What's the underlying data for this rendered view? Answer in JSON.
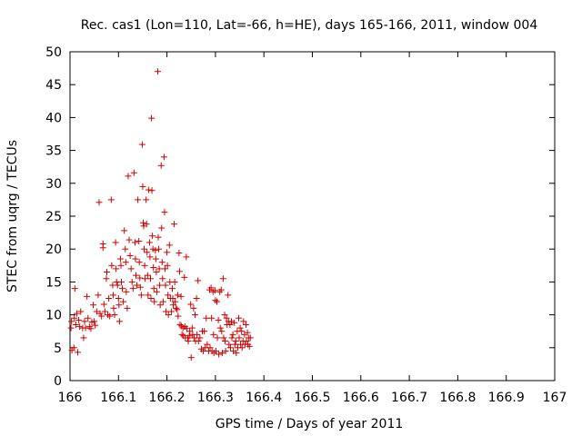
{
  "chart_data": {
    "type": "scatter",
    "title": "Rec. cas1 (Lon=110, Lat=-66, h=HE), days 165-166, 2011, window 004",
    "xlabel": "GPS time / Days of year 2011",
    "ylabel": "STEC from uqrg / TECUs",
    "xlim": [
      166,
      167
    ],
    "ylim": [
      0,
      50
    ],
    "x_ticks": [
      166,
      166.1,
      166.2,
      166.3,
      166.4,
      166.5,
      166.6,
      166.7,
      166.8,
      166.9,
      167
    ],
    "x_tick_labels": [
      "166",
      "166.1",
      "166.2",
      "166.3",
      "166.4",
      "166.5",
      "166.6",
      "166.7",
      "166.8",
      "166.9",
      "167"
    ],
    "y_ticks": [
      0,
      5,
      10,
      15,
      20,
      25,
      30,
      35,
      40,
      45,
      50
    ],
    "y_tick_labels": [
      "0",
      "5",
      "10",
      "15",
      "20",
      "25",
      "30",
      "35",
      "40",
      "45",
      "50"
    ],
    "grid": false,
    "marker": "+",
    "color": "#cc0000",
    "series": [
      {
        "points": [
          [
            166.002,
            8.0
          ],
          [
            166.003,
            9.0
          ],
          [
            166.004,
            4.6
          ],
          [
            166.008,
            5.0
          ],
          [
            166.009,
            9.5
          ],
          [
            166.01,
            14.0
          ],
          [
            166.012,
            8.5
          ],
          [
            166.014,
            10.2
          ],
          [
            166.016,
            4.3
          ],
          [
            166.018,
            9.2
          ],
          [
            166.02,
            8.2
          ],
          [
            166.022,
            10.5
          ],
          [
            166.026,
            8.0
          ],
          [
            166.028,
            6.5
          ],
          [
            166.03,
            9.0
          ],
          [
            166.032,
            8.0
          ],
          [
            166.035,
            12.8
          ],
          [
            166.037,
            9.5
          ],
          [
            166.04,
            8.2
          ],
          [
            166.043,
            7.9
          ],
          [
            166.045,
            8.9
          ],
          [
            166.048,
            11.5
          ],
          [
            166.05,
            9.0
          ],
          [
            166.052,
            8.4
          ],
          [
            166.055,
            10.5
          ],
          [
            166.058,
            13.0
          ],
          [
            166.06,
            27.1
          ],
          [
            166.062,
            10.2
          ],
          [
            166.065,
            9.8
          ],
          [
            166.068,
            20.2
          ],
          [
            166.068,
            20.8
          ],
          [
            166.07,
            11.6
          ],
          [
            166.072,
            10.5
          ],
          [
            166.075,
            15.5
          ],
          [
            166.076,
            16.5
          ],
          [
            166.078,
            10.0
          ],
          [
            166.08,
            12.5
          ],
          [
            166.082,
            9.8
          ],
          [
            166.085,
            27.5
          ],
          [
            166.086,
            17.5
          ],
          [
            166.088,
            14.5
          ],
          [
            166.089,
            13.0
          ],
          [
            166.09,
            11.0
          ],
          [
            166.092,
            10.0
          ],
          [
            166.094,
            21.0
          ],
          [
            166.095,
            17.0
          ],
          [
            166.096,
            15.0
          ],
          [
            166.098,
            14.5
          ],
          [
            166.1,
            12.5
          ],
          [
            166.101,
            11.5
          ],
          [
            166.102,
            9.0
          ],
          [
            166.104,
            18.5
          ],
          [
            166.105,
            17.5
          ],
          [
            166.106,
            15.0
          ],
          [
            166.108,
            14.0
          ],
          [
            166.11,
            12.0
          ],
          [
            166.112,
            22.8
          ],
          [
            166.114,
            20.0
          ],
          [
            166.115,
            18.0
          ],
          [
            166.116,
            13.5
          ],
          [
            166.118,
            11.0
          ],
          [
            166.12,
            31.1
          ],
          [
            166.122,
            21.4
          ],
          [
            166.124,
            19.0
          ],
          [
            166.126,
            17.0
          ],
          [
            166.128,
            15.0
          ],
          [
            166.13,
            14.0
          ],
          [
            166.132,
            31.6
          ],
          [
            166.134,
            21.0
          ],
          [
            166.135,
            18.5
          ],
          [
            166.136,
            16.0
          ],
          [
            166.138,
            14.5
          ],
          [
            166.14,
            27.5
          ],
          [
            166.142,
            21.2
          ],
          [
            166.143,
            18.0
          ],
          [
            166.144,
            15.6
          ],
          [
            166.145,
            14.2
          ],
          [
            166.147,
            13.0
          ],
          [
            166.149,
            35.9
          ],
          [
            166.15,
            29.5
          ],
          [
            166.151,
            24.0
          ],
          [
            166.152,
            23.5
          ],
          [
            166.153,
            20.0
          ],
          [
            166.154,
            17.5
          ],
          [
            166.155,
            15.5
          ],
          [
            166.157,
            27.5
          ],
          [
            166.158,
            23.8
          ],
          [
            166.159,
            19.5
          ],
          [
            166.16,
            16.0
          ],
          [
            166.161,
            13.0
          ],
          [
            166.162,
            29.0
          ],
          [
            166.164,
            21.0
          ],
          [
            166.165,
            18.8
          ],
          [
            166.166,
            15.5
          ],
          [
            166.167,
            12.5
          ],
          [
            166.168,
            39.9
          ],
          [
            166.169,
            28.9
          ],
          [
            166.17,
            22.0
          ],
          [
            166.171,
            20.0
          ],
          [
            166.172,
            17.2
          ],
          [
            166.173,
            14.0
          ],
          [
            166.174,
            12.0
          ],
          [
            166.176,
            19.8
          ],
          [
            166.177,
            18.5
          ],
          [
            166.178,
            16.5
          ],
          [
            166.179,
            13.5
          ],
          [
            166.181,
            47.0
          ],
          [
            166.182,
            21.8
          ],
          [
            166.183,
            20.0
          ],
          [
            166.184,
            17.0
          ],
          [
            166.185,
            14.5
          ],
          [
            166.186,
            11.5
          ],
          [
            166.188,
            32.7
          ],
          [
            166.189,
            23.2
          ],
          [
            166.19,
            18.0
          ],
          [
            166.191,
            15.5
          ],
          [
            166.192,
            12.0
          ],
          [
            166.194,
            34.0
          ],
          [
            166.195,
            25.6
          ],
          [
            166.196,
            17.0
          ],
          [
            166.197,
            14.5
          ],
          [
            166.198,
            10.5
          ],
          [
            166.2,
            19.5
          ],
          [
            166.201,
            17.5
          ],
          [
            166.202,
            13.0
          ],
          [
            166.203,
            10.0
          ],
          [
            166.205,
            20.6
          ],
          [
            166.206,
            15.0
          ],
          [
            166.207,
            12.5
          ],
          [
            166.209,
            10.5
          ],
          [
            166.211,
            14.0
          ],
          [
            166.212,
            12.5
          ],
          [
            166.213,
            11.5
          ],
          [
            166.215,
            23.8
          ],
          [
            166.216,
            15.0
          ],
          [
            166.217,
            12.0
          ],
          [
            166.219,
            11.0
          ],
          [
            166.221,
            10.8
          ],
          [
            166.222,
            13.0
          ],
          [
            166.223,
            9.8
          ],
          [
            166.225,
            19.4
          ],
          [
            166.226,
            16.6
          ],
          [
            166.227,
            8.5
          ],
          [
            166.229,
            12.8
          ],
          [
            166.23,
            8.3
          ],
          [
            166.231,
            7.0
          ],
          [
            166.233,
            8.0
          ],
          [
            166.234,
            6.8
          ],
          [
            166.236,
            15.7
          ],
          [
            166.237,
            8.2
          ],
          [
            166.238,
            6.5
          ],
          [
            166.24,
            18.8
          ],
          [
            166.241,
            7.9
          ],
          [
            166.243,
            6.5
          ],
          [
            166.244,
            6.0
          ],
          [
            166.246,
            6.8
          ],
          [
            166.247,
            7.5
          ],
          [
            166.249,
            11.6
          ],
          [
            166.25,
            3.5
          ],
          [
            166.252,
            8.0
          ],
          [
            166.253,
            7.0
          ],
          [
            166.255,
            11.0
          ],
          [
            166.256,
            6.5
          ],
          [
            166.258,
            10.0
          ],
          [
            166.259,
            6.0
          ],
          [
            166.261,
            12.5
          ],
          [
            166.262,
            7.0
          ],
          [
            166.264,
            15.2
          ],
          [
            166.265,
            6.0
          ],
          [
            166.268,
            6.5
          ],
          [
            166.271,
            4.8
          ],
          [
            166.273,
            7.5
          ],
          [
            166.275,
            4.5
          ],
          [
            166.277,
            7.5
          ],
          [
            166.279,
            5.0
          ],
          [
            166.281,
            9.5
          ],
          [
            166.283,
            5.5
          ],
          [
            166.286,
            4.5
          ],
          [
            166.288,
            13.8
          ],
          [
            166.289,
            5.0
          ],
          [
            166.291,
            14.1
          ],
          [
            166.292,
            9.5
          ],
          [
            166.293,
            4.5
          ],
          [
            166.295,
            13.5
          ],
          [
            166.296,
            7.0
          ],
          [
            166.297,
            4.2
          ],
          [
            166.299,
            13.7
          ],
          [
            166.3,
            12.2
          ],
          [
            166.301,
            4.5
          ],
          [
            166.303,
            12.0
          ],
          [
            166.304,
            6.5
          ],
          [
            166.306,
            9.2
          ],
          [
            166.307,
            4.0
          ],
          [
            166.309,
            13.5
          ],
          [
            166.31,
            8.0
          ],
          [
            166.312,
            13.8
          ],
          [
            166.313,
            7.5
          ],
          [
            166.314,
            4.2
          ],
          [
            166.316,
            15.5
          ],
          [
            166.317,
            6.5
          ],
          [
            166.319,
            10.0
          ],
          [
            166.32,
            6.0
          ],
          [
            166.321,
            4.5
          ],
          [
            166.323,
            9.5
          ],
          [
            166.324,
            8.5
          ],
          [
            166.326,
            13.0
          ],
          [
            166.327,
            9.0
          ],
          [
            166.328,
            5.5
          ],
          [
            166.33,
            8.5
          ],
          [
            166.331,
            5.0
          ],
          [
            166.333,
            9.0
          ],
          [
            166.334,
            6.5
          ],
          [
            166.336,
            7.0
          ],
          [
            166.337,
            4.5
          ],
          [
            166.339,
            8.8
          ],
          [
            166.34,
            5.5
          ],
          [
            166.342,
            6.0
          ],
          [
            166.343,
            4.2
          ],
          [
            166.345,
            7.5
          ],
          [
            166.346,
            5.0
          ],
          [
            166.348,
            9.5
          ],
          [
            166.349,
            6.5
          ],
          [
            166.351,
            8.0
          ],
          [
            166.352,
            5.5
          ],
          [
            166.354,
            7.5
          ],
          [
            166.355,
            5.0
          ],
          [
            166.357,
            6.0
          ],
          [
            166.358,
            9.0
          ],
          [
            166.36,
            7.0
          ],
          [
            166.361,
            5.5
          ],
          [
            166.363,
            8.5
          ],
          [
            166.364,
            6.0
          ],
          [
            166.366,
            7.3
          ],
          [
            166.367,
            5.5
          ],
          [
            166.369,
            6.5
          ],
          [
            166.37,
            5.2
          ],
          [
            166.372,
            6.5
          ]
        ]
      }
    ]
  }
}
